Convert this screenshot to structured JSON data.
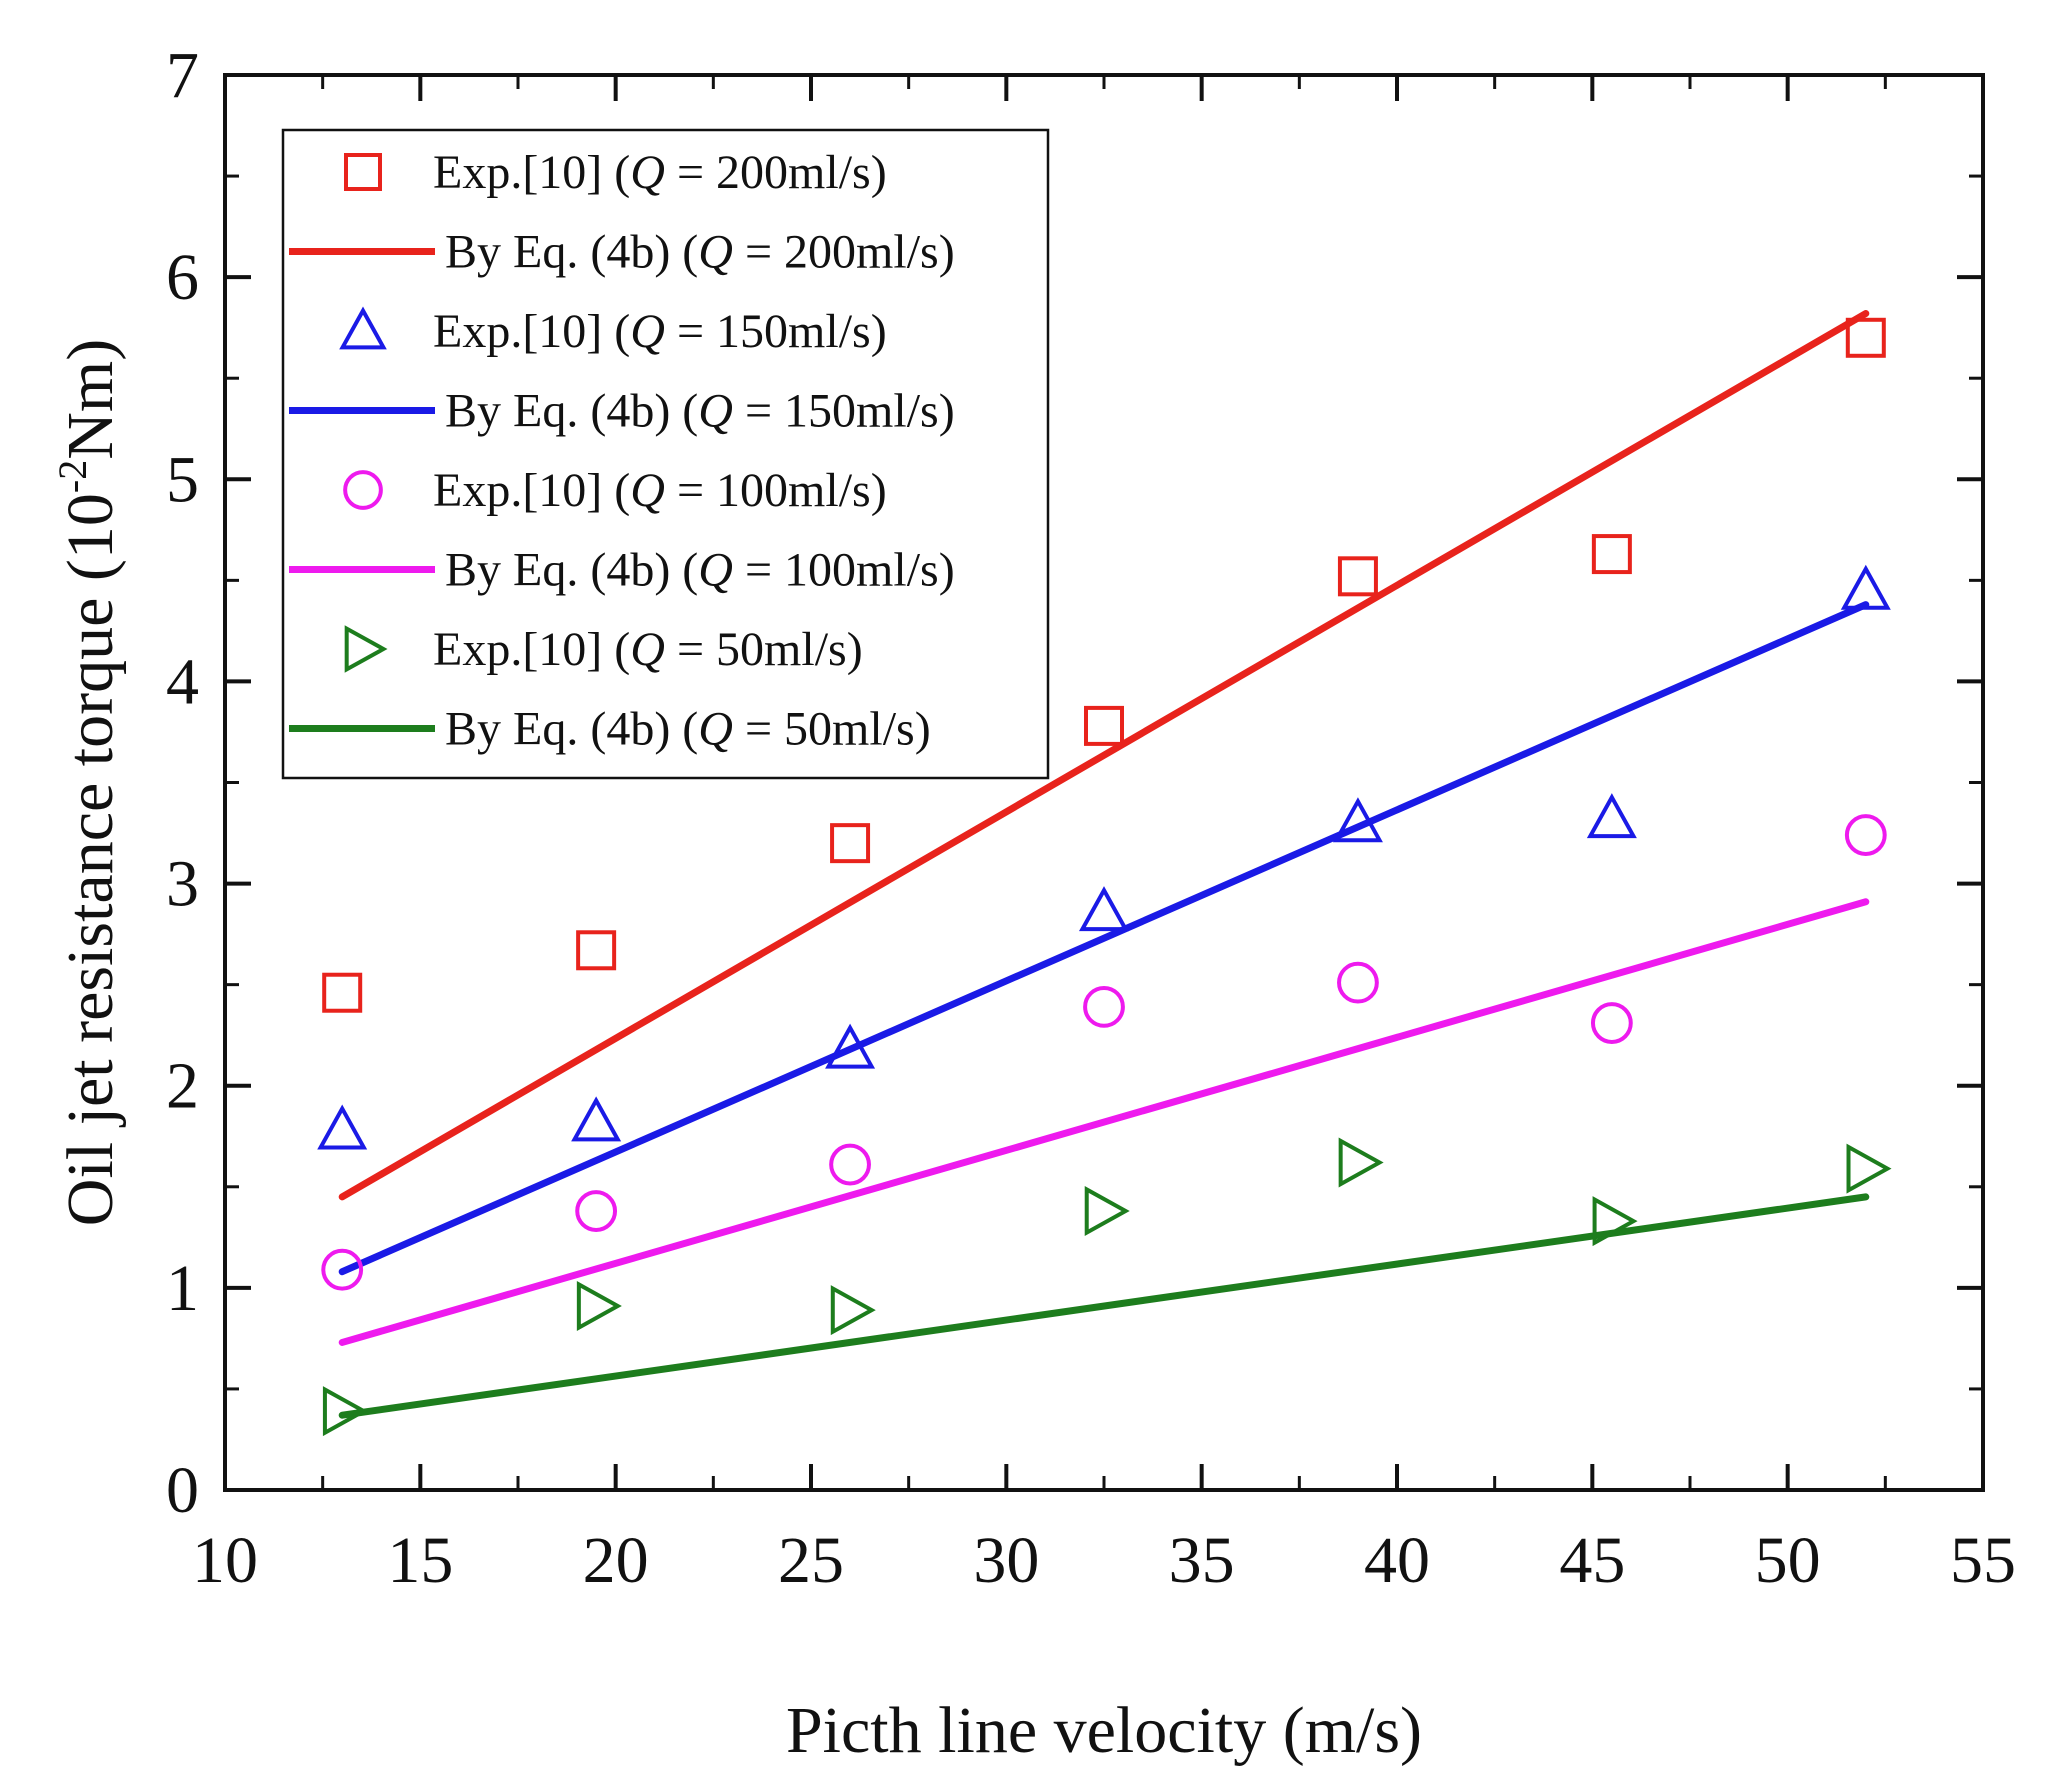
{
  "chart_data": {
    "type": "scatter",
    "title": "",
    "xlabel": "Picth line velocity (m/s)",
    "ylabel_parts": [
      "Oil jet resistance torque (10",
      "-2",
      "Nm)"
    ],
    "xlim": [
      10,
      55
    ],
    "ylim": [
      0,
      7
    ],
    "xticks": [
      10,
      15,
      20,
      25,
      30,
      35,
      40,
      45,
      50,
      55
    ],
    "yticks": [
      0,
      1,
      2,
      3,
      4,
      5,
      6,
      7
    ],
    "legend_position": "top-left",
    "series": [
      {
        "name_prefix": "Exp.[10] (",
        "name_var": "Q",
        "name_suffix": " = 200ml/s)",
        "kind": "markers",
        "marker": "square",
        "color": "#e8231c",
        "x": [
          13,
          19.5,
          26,
          32.5,
          39,
          45.5,
          52
        ],
        "y": [
          2.46,
          2.67,
          3.2,
          3.78,
          4.52,
          4.63,
          5.7
        ]
      },
      {
        "name_prefix": " By Eq. (4b) (",
        "name_var": "Q",
        "name_suffix": " = 200ml/s)",
        "kind": "line",
        "color": "#e8231c",
        "x": [
          13,
          52
        ],
        "y": [
          1.45,
          5.82
        ]
      },
      {
        "name_prefix": "Exp.[10] (",
        "name_var": "Q",
        "name_suffix": " = 150ml/s)",
        "kind": "markers",
        "marker": "triangle-up",
        "color": "#1a1ae6",
        "x": [
          13,
          19.5,
          26,
          32.5,
          39,
          45.5,
          52
        ],
        "y": [
          1.78,
          1.82,
          2.18,
          2.86,
          3.3,
          3.32,
          4.45
        ]
      },
      {
        "name_prefix": "By Eq. (4b) (",
        "name_var": "Q",
        "name_suffix": " = 150ml/s)",
        "kind": "line",
        "color": "#1a1ae6",
        "x": [
          13,
          52
        ],
        "y": [
          1.08,
          4.38
        ]
      },
      {
        "name_prefix": "Exp.[10] (",
        "name_var": "Q",
        "name_suffix": " = 100ml/s)",
        "kind": "markers",
        "marker": "circle",
        "color": "#ee1aee",
        "x": [
          13,
          19.5,
          26,
          32.5,
          39,
          45.5,
          52
        ],
        "y": [
          1.09,
          1.38,
          1.61,
          2.39,
          2.51,
          2.31,
          3.24
        ]
      },
      {
        "name_prefix": "By Eq. (4b) (",
        "name_var": "Q",
        "name_suffix": " = 100ml/s)",
        "kind": "line",
        "color": "#ee1aee",
        "x": [
          13,
          52
        ],
        "y": [
          0.73,
          2.91
        ]
      },
      {
        "name_prefix": "Exp.[10] (",
        "name_var": "Q",
        "name_suffix": " = 50ml/s)",
        "kind": "markers",
        "marker": "triangle-right",
        "color": "#1d7d1d",
        "x": [
          13,
          19.5,
          26,
          32.5,
          39,
          45.5,
          52
        ],
        "y": [
          0.39,
          0.91,
          0.89,
          1.38,
          1.62,
          1.33,
          1.59
        ]
      },
      {
        "name_prefix": "By Eq. (4b) (",
        "name_var": "Q",
        "name_suffix": " = 50ml/s)",
        "kind": "line",
        "color": "#1d7d1d",
        "x": [
          13,
          52
        ],
        "y": [
          0.37,
          1.45
        ]
      }
    ]
  }
}
